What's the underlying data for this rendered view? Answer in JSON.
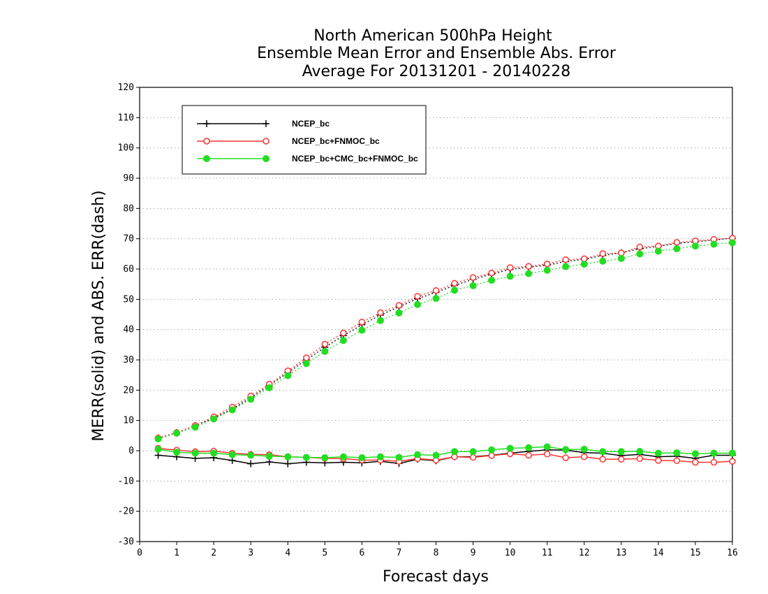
{
  "chart_data": {
    "type": "line",
    "title": [
      "North American 500hPa Height",
      "Ensemble Mean Error and Ensemble Abs. Error",
      "Average For 20131201 - 20140228"
    ],
    "xlabel": "Forecast days",
    "ylabel": "MERR(solid) and ABS. ERR(dash)",
    "xlim": [
      0,
      16
    ],
    "ylim": [
      -30,
      120
    ],
    "xticks": [
      0,
      1,
      2,
      3,
      4,
      5,
      6,
      7,
      8,
      9,
      10,
      11,
      12,
      13,
      14,
      15,
      16
    ],
    "yticks": [
      -30,
      -20,
      -10,
      0,
      10,
      20,
      30,
      40,
      50,
      60,
      70,
      80,
      90,
      100,
      110,
      120
    ],
    "grid": "horizontal dotted",
    "legend_position": "top-left",
    "x": [
      0.5,
      1,
      1.5,
      2,
      2.5,
      3,
      3.5,
      4,
      4.5,
      5,
      5.5,
      6,
      6.5,
      7,
      7.5,
      8,
      8.5,
      9,
      9.5,
      10,
      10.5,
      11,
      11.5,
      12,
      12.5,
      13,
      13.5,
      14,
      14.5,
      15,
      15.5,
      16
    ],
    "series": [
      {
        "name": "NCEP_bc",
        "color": "#000000",
        "marker": "plus",
        "merr": [
          -1.5,
          -2,
          -2.5,
          -2.3,
          -3.2,
          -4.3,
          -3.7,
          -4.3,
          -3.8,
          -4.0,
          -3.8,
          -4.0,
          -3.5,
          -4.2,
          -2.8,
          -3.3,
          -2.0,
          -2.0,
          -1.5,
          -0.8,
          -0.2,
          0.3,
          0.2,
          -0.6,
          -0.8,
          -1.6,
          -1.2,
          -2.0,
          -1.8,
          -2.5,
          -1.5,
          -1.5
        ],
        "abs_err": [
          4.2,
          6.0,
          8.3,
          10.8,
          13.8,
          17.5,
          21.5,
          25.8,
          30.0,
          34.2,
          38.0,
          41.6,
          44.8,
          47.5,
          50.2,
          52.3,
          54.6,
          56.6,
          58.3,
          59.9,
          60.6,
          61.3,
          62.5,
          63.2,
          64.5,
          65.4,
          66.7,
          67.5,
          68.5,
          69.0,
          69.6,
          70.2
        ]
      },
      {
        "name": "NCEP_bc+FNMOC_bc",
        "color": "#ff3333",
        "marker": "open-circle",
        "merr": [
          0.8,
          0.2,
          -0.3,
          -0.1,
          -0.8,
          -1.2,
          -1.3,
          -2.0,
          -2.2,
          -2.5,
          -2.6,
          -3.1,
          -3.1,
          -3.5,
          -2.6,
          -3.1,
          -2.0,
          -2.2,
          -1.6,
          -1.0,
          -1.5,
          -1.1,
          -2.3,
          -2.0,
          -2.8,
          -2.8,
          -2.6,
          -3.2,
          -3.3,
          -3.8,
          -3.8,
          -3.5
        ],
        "abs_err": [
          4.2,
          6.0,
          8.3,
          11.2,
          14.4,
          18.1,
          22.0,
          26.4,
          30.7,
          35.2,
          38.9,
          42.5,
          45.6,
          48.0,
          51.0,
          52.9,
          55.3,
          57.2,
          58.7,
          60.5,
          60.9,
          61.7,
          63.1,
          63.4,
          65.1,
          65.3,
          67.3,
          67.6,
          68.8,
          69.3,
          69.8,
          70.2
        ]
      },
      {
        "name": "NCEP_bc+CMC_bc+FNMOC_bc",
        "color": "#22dd22",
        "marker": "filled-circle",
        "merr": [
          0.5,
          -0.5,
          -0.8,
          -0.8,
          -1.3,
          -1.5,
          -1.8,
          -2.0,
          -2.2,
          -2.3,
          -2.0,
          -2.3,
          -2.0,
          -2.2,
          -1.3,
          -1.5,
          -0.3,
          -0.3,
          0.3,
          0.8,
          1.0,
          1.3,
          0.4,
          0.5,
          -0.3,
          -0.3,
          -0.2,
          -0.8,
          -0.7,
          -1.0,
          -0.8,
          -0.8
        ],
        "abs_err": [
          3.9,
          5.8,
          7.8,
          10.5,
          13.5,
          17.0,
          20.8,
          24.8,
          28.8,
          32.8,
          36.4,
          39.8,
          43.0,
          45.5,
          48.3,
          50.3,
          53.0,
          54.5,
          56.3,
          57.6,
          58.5,
          59.6,
          60.8,
          61.6,
          62.6,
          63.5,
          65.0,
          65.9,
          66.7,
          67.6,
          68.2,
          68.7
        ]
      }
    ]
  }
}
